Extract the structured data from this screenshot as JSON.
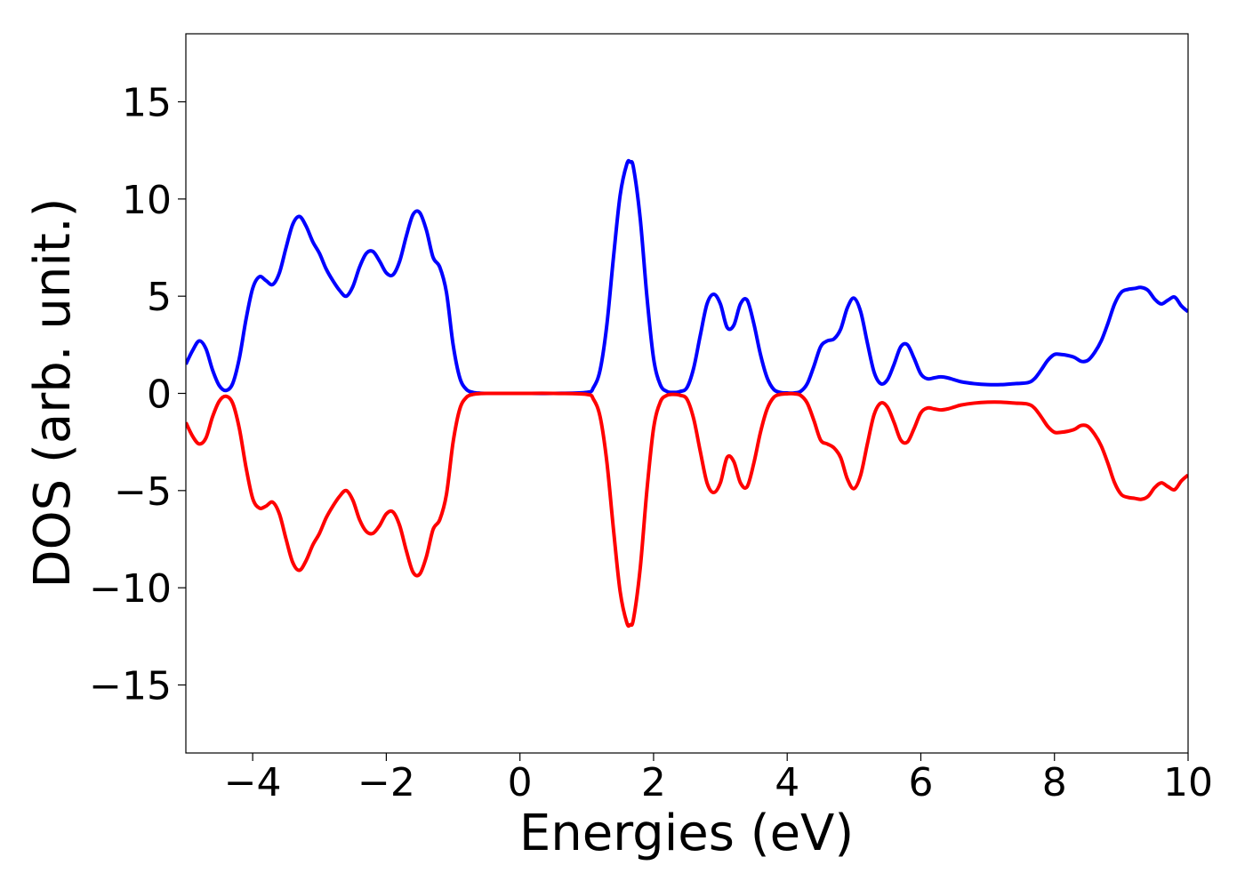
{
  "chart_data": {
    "type": "line",
    "title": "",
    "xlabel": "Energies (eV)",
    "ylabel": "DOS (arb. unit.)",
    "xlim": [
      -5,
      10
    ],
    "ylim": [
      -18.5,
      18.5
    ],
    "xticks": [
      -4,
      -2,
      0,
      2,
      4,
      6,
      8,
      10
    ],
    "xtick_labels": [
      "−4",
      "−2",
      "0",
      "2",
      "4",
      "6",
      "8",
      "10"
    ],
    "yticks": [
      -15,
      -10,
      -5,
      0,
      5,
      10,
      15
    ],
    "ytick_labels": [
      "−15",
      "−10",
      "−5",
      "0",
      "5",
      "10",
      "15"
    ],
    "grid": false,
    "legend": false,
    "series": [
      {
        "color": "#0000ff",
        "x": [
          -5.0,
          -4.9,
          -4.8,
          -4.7,
          -4.6,
          -4.5,
          -4.4,
          -4.3,
          -4.2,
          -4.1,
          -4.0,
          -3.9,
          -3.8,
          -3.7,
          -3.6,
          -3.5,
          -3.4,
          -3.3,
          -3.2,
          -3.1,
          -3.0,
          -2.9,
          -2.8,
          -2.7,
          -2.6,
          -2.5,
          -2.4,
          -2.3,
          -2.2,
          -2.1,
          -2.0,
          -1.9,
          -1.8,
          -1.7,
          -1.6,
          -1.5,
          -1.4,
          -1.3,
          -1.2,
          -1.1,
          -1.0,
          -0.9,
          -0.8,
          -0.7,
          -0.6,
          -0.5,
          0.0,
          0.5,
          1.0,
          1.1,
          1.2,
          1.3,
          1.4,
          1.5,
          1.6,
          1.65,
          1.7,
          1.8,
          1.9,
          2.0,
          2.1,
          2.2,
          2.3,
          2.4,
          2.5,
          2.6,
          2.7,
          2.8,
          2.9,
          3.0,
          3.1,
          3.2,
          3.3,
          3.4,
          3.5,
          3.6,
          3.7,
          3.8,
          3.9,
          4.0,
          4.1,
          4.2,
          4.3,
          4.4,
          4.5,
          4.6,
          4.7,
          4.8,
          4.9,
          5.0,
          5.1,
          5.2,
          5.3,
          5.4,
          5.5,
          5.6,
          5.7,
          5.8,
          5.9,
          6.0,
          6.1,
          6.2,
          6.3,
          6.4,
          6.5,
          6.6,
          6.8,
          7.0,
          7.2,
          7.4,
          7.6,
          7.7,
          7.8,
          7.9,
          8.0,
          8.1,
          8.2,
          8.3,
          8.4,
          8.5,
          8.6,
          8.7,
          8.8,
          8.9,
          9.0,
          9.1,
          9.2,
          9.3,
          9.4,
          9.5,
          9.6,
          9.7,
          9.8,
          9.9,
          10.0
        ],
        "y": [
          1.5,
          2.2,
          2.7,
          2.3,
          1.2,
          0.4,
          0.15,
          0.5,
          1.8,
          3.8,
          5.4,
          6.0,
          5.8,
          5.6,
          6.2,
          7.5,
          8.7,
          9.1,
          8.6,
          7.8,
          7.2,
          6.4,
          5.8,
          5.3,
          5.0,
          5.5,
          6.5,
          7.2,
          7.3,
          6.8,
          6.2,
          6.1,
          6.8,
          8.1,
          9.2,
          9.3,
          8.4,
          7.0,
          6.5,
          5.2,
          2.5,
          0.8,
          0.2,
          0.05,
          0.01,
          0.0,
          0.0,
          0.0,
          0.05,
          0.3,
          1.2,
          3.5,
          7.0,
          10.2,
          11.8,
          11.9,
          11.6,
          9.0,
          5.0,
          1.8,
          0.45,
          0.1,
          0.05,
          0.1,
          0.3,
          1.3,
          3.0,
          4.6,
          5.1,
          4.6,
          3.4,
          3.5,
          4.6,
          4.8,
          3.6,
          2.0,
          0.8,
          0.2,
          0.05,
          0.02,
          0.02,
          0.1,
          0.5,
          1.4,
          2.4,
          2.7,
          2.8,
          3.3,
          4.4,
          4.9,
          4.2,
          2.6,
          1.1,
          0.5,
          0.7,
          1.5,
          2.4,
          2.5,
          1.8,
          1.0,
          0.75,
          0.8,
          0.85,
          0.8,
          0.7,
          0.6,
          0.5,
          0.45,
          0.45,
          0.5,
          0.55,
          0.75,
          1.2,
          1.7,
          2.0,
          2.0,
          1.95,
          1.85,
          1.65,
          1.7,
          2.1,
          2.7,
          3.6,
          4.6,
          5.2,
          5.35,
          5.4,
          5.45,
          5.3,
          4.85,
          4.6,
          4.8,
          4.95,
          4.5,
          4.2
        ]
      },
      {
        "color": "#ff0000",
        "x": [
          -5.0,
          -4.9,
          -4.8,
          -4.7,
          -4.6,
          -4.5,
          -4.4,
          -4.3,
          -4.2,
          -4.1,
          -4.0,
          -3.9,
          -3.8,
          -3.7,
          -3.6,
          -3.5,
          -3.4,
          -3.3,
          -3.2,
          -3.1,
          -3.0,
          -2.9,
          -2.8,
          -2.7,
          -2.6,
          -2.5,
          -2.4,
          -2.3,
          -2.2,
          -2.1,
          -2.0,
          -1.9,
          -1.8,
          -1.7,
          -1.6,
          -1.5,
          -1.4,
          -1.3,
          -1.2,
          -1.1,
          -1.0,
          -0.9,
          -0.8,
          -0.7,
          -0.6,
          -0.5,
          0.0,
          0.5,
          1.0,
          1.1,
          1.2,
          1.3,
          1.4,
          1.5,
          1.6,
          1.65,
          1.7,
          1.8,
          1.9,
          2.0,
          2.1,
          2.2,
          2.3,
          2.4,
          2.5,
          2.6,
          2.7,
          2.8,
          2.9,
          3.0,
          3.1,
          3.2,
          3.3,
          3.4,
          3.5,
          3.6,
          3.7,
          3.8,
          3.9,
          4.0,
          4.1,
          4.2,
          4.3,
          4.4,
          4.5,
          4.6,
          4.7,
          4.8,
          4.9,
          5.0,
          5.1,
          5.2,
          5.3,
          5.4,
          5.5,
          5.6,
          5.7,
          5.8,
          5.9,
          6.0,
          6.1,
          6.2,
          6.3,
          6.4,
          6.5,
          6.6,
          6.8,
          7.0,
          7.2,
          7.4,
          7.6,
          7.7,
          7.8,
          7.9,
          8.0,
          8.1,
          8.2,
          8.3,
          8.4,
          8.5,
          8.6,
          8.7,
          8.8,
          8.9,
          9.0,
          9.1,
          9.2,
          9.3,
          9.4,
          9.5,
          9.6,
          9.7,
          9.8,
          9.9,
          10.0
        ],
        "y": [
          -1.5,
          -2.2,
          -2.6,
          -2.3,
          -1.2,
          -0.4,
          -0.15,
          -0.5,
          -1.8,
          -3.8,
          -5.4,
          -5.9,
          -5.8,
          -5.6,
          -6.2,
          -7.5,
          -8.7,
          -9.1,
          -8.6,
          -7.8,
          -7.2,
          -6.4,
          -5.8,
          -5.3,
          -5.0,
          -5.5,
          -6.5,
          -7.1,
          -7.2,
          -6.8,
          -6.2,
          -6.1,
          -6.8,
          -8.1,
          -9.2,
          -9.3,
          -8.4,
          -7.0,
          -6.5,
          -5.2,
          -2.5,
          -0.8,
          -0.2,
          -0.05,
          -0.01,
          0.0,
          0.0,
          0.0,
          -0.05,
          -0.3,
          -1.2,
          -3.5,
          -7.0,
          -10.2,
          -11.8,
          -11.9,
          -11.6,
          -9.0,
          -5.0,
          -1.8,
          -0.45,
          -0.1,
          -0.05,
          -0.1,
          -0.3,
          -1.3,
          -3.0,
          -4.6,
          -5.1,
          -4.6,
          -3.3,
          -3.5,
          -4.6,
          -4.8,
          -3.6,
          -2.0,
          -0.8,
          -0.2,
          -0.05,
          -0.02,
          -0.02,
          -0.1,
          -0.5,
          -1.4,
          -2.4,
          -2.6,
          -2.8,
          -3.3,
          -4.4,
          -4.9,
          -4.2,
          -2.6,
          -1.1,
          -0.5,
          -0.7,
          -1.5,
          -2.4,
          -2.5,
          -1.8,
          -1.0,
          -0.75,
          -0.8,
          -0.85,
          -0.8,
          -0.7,
          -0.6,
          -0.5,
          -0.45,
          -0.45,
          -0.5,
          -0.55,
          -0.75,
          -1.2,
          -1.7,
          -2.0,
          -2.0,
          -1.95,
          -1.85,
          -1.65,
          -1.7,
          -2.1,
          -2.7,
          -3.6,
          -4.6,
          -5.2,
          -5.35,
          -5.4,
          -5.45,
          -5.3,
          -4.85,
          -4.6,
          -4.8,
          -4.95,
          -4.5,
          -4.2
        ]
      }
    ]
  }
}
